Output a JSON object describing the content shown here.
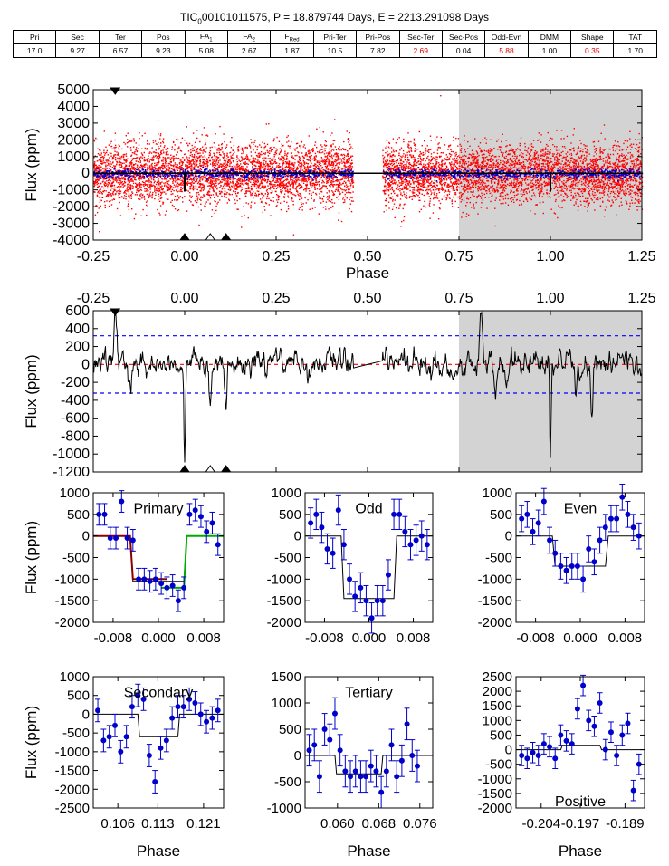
{
  "title": "TIC",
  "title_sub": "0",
  "title_rest": "00101011575, P = 18.879744 Days, E = 2213.291098 Days",
  "metrics": {
    "headers": [
      "Pri",
      "Sec",
      "Ter",
      "Pos",
      "FA1",
      "FA2",
      "FRed",
      "Pri-Ter",
      "Pri-Pos",
      "Sec-Ter",
      "Sec-Pos",
      "Odd-Evn",
      "DMM",
      "Shape",
      "TAT"
    ],
    "values": [
      "17.0",
      "9.27",
      "6.57",
      "9.23",
      "5.08",
      "2.67",
      "1.87",
      "10.5",
      "7.82",
      "2.69",
      "0.04",
      "5.88",
      "1.00",
      "0.35",
      "1.70"
    ],
    "red": [
      false,
      false,
      false,
      false,
      false,
      false,
      false,
      false,
      false,
      true,
      false,
      true,
      false,
      true,
      false
    ]
  },
  "colors": {
    "raw": "#ff0000",
    "binned": "#0000cc",
    "model": "#000000",
    "shade": "#d3d3d3",
    "primary_fit": "#8b0000",
    "primary_fit2": "#00aa00",
    "dashed_red": "#ff0000",
    "dashed_blue": "#0000ff"
  },
  "chart_data": [
    {
      "id": "phase-full",
      "type": "scatter",
      "xlabel": "Phase",
      "ylabel": "Flux (ppm)",
      "xlim": [
        -0.25,
        1.25
      ],
      "ylim": [
        -4000,
        5000
      ],
      "xticks": [
        "-0.25",
        "0.00",
        "0.25",
        "0.50",
        "0.75",
        "1.00",
        "1.25"
      ],
      "yticks": [
        "-4000",
        "-3000",
        "-2000",
        "-1000",
        "0",
        "1000",
        "2000",
        "3000",
        "4000",
        "5000"
      ],
      "shaded_x": [
        0.75,
        1.25
      ],
      "gap_x": [
        0.46,
        0.54
      ],
      "scatter_sigma": 900,
      "dips_x": [
        0.0,
        1.0
      ],
      "markers_top": [
        {
          "x": -0.19,
          "kind": "filled"
        }
      ],
      "markers_bottom": [
        {
          "x": 0.0,
          "kind": "filled"
        },
        {
          "x": 0.07,
          "kind": "open"
        },
        {
          "x": 0.113,
          "kind": "filled"
        }
      ]
    },
    {
      "id": "phase-binned",
      "type": "line",
      "xlim": [
        -0.25,
        1.25
      ],
      "ylim": [
        -1200,
        600
      ],
      "ylabel": "Flux (ppm)",
      "xticks": [
        "-0.25",
        "0.00",
        "0.25",
        "0.50",
        "0.75",
        "1.00",
        "1.25"
      ],
      "yticks": [
        "-1200",
        "-1000",
        "-800",
        "-600",
        "-400",
        "-200",
        "0",
        "200",
        "400",
        "600"
      ],
      "shaded_x": [
        0.75,
        1.25
      ],
      "hlines": [
        {
          "y": 320,
          "color": "blue"
        },
        {
          "y": -320,
          "color": "blue"
        },
        {
          "y": 0,
          "color": "red"
        }
      ],
      "features": [
        [
          -0.19,
          600,
          0.006
        ],
        [
          -0.15,
          -300,
          0.006
        ],
        [
          0.0,
          -1100,
          0.003
        ],
        [
          0.07,
          -420,
          0.004
        ],
        [
          0.113,
          -560,
          0.004
        ],
        [
          0.81,
          600,
          0.006
        ],
        [
          0.85,
          -300,
          0.006
        ],
        [
          1.0,
          -1100,
          0.003
        ],
        [
          1.07,
          -420,
          0.004
        ],
        [
          1.113,
          -560,
          0.004
        ]
      ],
      "flat_segment": [
        0.46,
        0.54,
        80
      ],
      "markers_top": [
        {
          "x": -0.19,
          "kind": "filled"
        }
      ],
      "markers_bottom": [
        {
          "x": 0.0,
          "kind": "filled"
        },
        {
          "x": 0.07,
          "kind": "open"
        },
        {
          "x": 0.113,
          "kind": "filled"
        }
      ]
    },
    {
      "id": "primary",
      "label": "Primary",
      "type": "scatter",
      "ylabel": "Flux (ppm)",
      "xlim": [
        -0.0115,
        0.0115
      ],
      "ylim": [
        -2000,
        1000
      ],
      "xticks": [
        [
          -0.008,
          "-0.008"
        ],
        [
          0.0,
          "0.000"
        ],
        [
          0.008,
          "0.008"
        ]
      ],
      "yticks": [
        "-2000",
        "-1500",
        "-1000",
        "-500",
        "0",
        "500",
        "1000"
      ],
      "x": [
        -0.0105,
        -0.0095,
        -0.0085,
        -0.0075,
        -0.0065,
        -0.0055,
        -0.0045,
        -0.0035,
        -0.0025,
        -0.0015,
        -0.0005,
        0.0005,
        0.0015,
        0.0025,
        0.0035,
        0.0045,
        0.0055,
        0.0065,
        0.0075,
        0.0085,
        0.0095,
        0.0105
      ],
      "y": [
        500,
        500,
        -50,
        -50,
        800,
        -50,
        -100,
        -1000,
        -1000,
        -1050,
        -1000,
        -1100,
        -1200,
        -1150,
        -1500,
        -1200,
        500,
        600,
        450,
        100,
        300,
        -200
      ],
      "err": 250,
      "model": [
        [
          -0.0115,
          0
        ],
        [
          -0.005,
          0
        ],
        [
          -0.0045,
          -1050
        ],
        [
          0.0045,
          -1050
        ],
        [
          0.005,
          0
        ],
        [
          0.0115,
          0
        ]
      ],
      "fit_left": [
        [
          -0.0115,
          0
        ],
        [
          -0.005,
          0
        ],
        [
          -0.0045,
          -1000
        ],
        [
          0.0015,
          -1000
        ]
      ],
      "fit_right": [
        [
          0.0005,
          -1200
        ],
        [
          0.0045,
          -1200
        ],
        [
          0.005,
          0
        ],
        [
          0.0115,
          0
        ]
      ]
    },
    {
      "id": "odd",
      "label": "Odd",
      "type": "scatter",
      "xlim": [
        -0.0115,
        0.0115
      ],
      "ylim": [
        -2000,
        1000
      ],
      "xticks": [
        [
          -0.008,
          "-0.008"
        ],
        [
          0.0,
          "0.000"
        ],
        [
          0.008,
          "0.008"
        ]
      ],
      "yticks": [
        "-2000",
        "-1500",
        "-1000",
        "-500",
        "0",
        "500",
        "1000"
      ],
      "x": [
        -0.0105,
        -0.0095,
        -0.0085,
        -0.0075,
        -0.0065,
        -0.0055,
        -0.0045,
        -0.0035,
        -0.0025,
        -0.0015,
        -0.0005,
        0.0005,
        0.0015,
        0.0025,
        0.0035,
        0.0045,
        0.0055,
        0.0065,
        0.0075,
        0.0085,
        0.0095,
        0.0105
      ],
      "y": [
        300,
        500,
        200,
        -300,
        -400,
        600,
        -200,
        -1000,
        -1400,
        -1200,
        -1500,
        -1900,
        -1500,
        -1500,
        -900,
        500,
        500,
        100,
        -200,
        -100,
        0,
        -200
      ],
      "err": 350,
      "model": [
        [
          -0.0115,
          0
        ],
        [
          -0.005,
          0
        ],
        [
          -0.0045,
          -1450
        ],
        [
          0.0045,
          -1450
        ],
        [
          0.005,
          0
        ],
        [
          0.0115,
          0
        ]
      ]
    },
    {
      "id": "even",
      "label": "Even",
      "type": "scatter",
      "xlim": [
        -0.0115,
        0.0115
      ],
      "ylim": [
        -2000,
        1000
      ],
      "xticks": [
        [
          -0.008,
          "-0.008"
        ],
        [
          0.0,
          "0.000"
        ],
        [
          0.008,
          "0.008"
        ]
      ],
      "yticks": [
        "-2000",
        "-1500",
        "-1000",
        "-500",
        "0",
        "500",
        "1000"
      ],
      "x": [
        -0.0105,
        -0.0095,
        -0.0085,
        -0.0075,
        -0.0065,
        -0.0055,
        -0.0045,
        -0.0035,
        -0.0025,
        -0.0015,
        -0.0005,
        0.0005,
        0.0015,
        0.0025,
        0.0035,
        0.0045,
        0.0055,
        0.0065,
        0.0075,
        0.0085,
        0.0095,
        0.0105
      ],
      "y": [
        400,
        500,
        100,
        300,
        800,
        -100,
        -400,
        -700,
        -800,
        -700,
        -700,
        -1000,
        -300,
        -600,
        -100,
        200,
        400,
        400,
        900,
        500,
        200,
        0
      ],
      "err": 300,
      "model": [
        [
          -0.0115,
          0
        ],
        [
          -0.005,
          0
        ],
        [
          -0.0045,
          -700
        ],
        [
          0.0045,
          -700
        ],
        [
          0.005,
          0
        ],
        [
          0.0115,
          0
        ]
      ]
    },
    {
      "id": "secondary",
      "label": "Secondary",
      "type": "scatter",
      "xlabel": "Phase",
      "ylabel": "Flux (ppm)",
      "xlim": [
        0.1017,
        0.1245
      ],
      "ylim": [
        -2500,
        1000
      ],
      "xticks": [
        [
          0.106,
          "0.106"
        ],
        [
          0.113,
          "0.113"
        ],
        [
          0.121,
          "0.121"
        ]
      ],
      "yticks": [
        "-2500",
        "-2000",
        "-1500",
        "-1000",
        "-500",
        "0",
        "500",
        "1000"
      ],
      "x": [
        0.1025,
        0.1035,
        0.1045,
        0.1055,
        0.1065,
        0.1075,
        0.1085,
        0.1095,
        0.1105,
        0.1115,
        0.1125,
        0.1135,
        0.1145,
        0.1155,
        0.1165,
        0.1175,
        0.1185,
        0.1195,
        0.1205,
        0.1215,
        0.1225,
        0.1235
      ],
      "y": [
        100,
        -700,
        -600,
        -300,
        -1000,
        -600,
        200,
        500,
        400,
        -1100,
        -1800,
        -900,
        -700,
        -100,
        200,
        200,
        400,
        300,
        0,
        -200,
        -100,
        100
      ],
      "err": 300,
      "model": [
        [
          0.1017,
          0
        ],
        [
          0.1095,
          0
        ],
        [
          0.1098,
          -600
        ],
        [
          0.1165,
          -600
        ],
        [
          0.1168,
          0
        ],
        [
          0.1245,
          0
        ]
      ]
    },
    {
      "id": "tertiary",
      "label": "Tertiary",
      "type": "scatter",
      "xlabel": "Phase",
      "xlim": [
        0.0537,
        0.0785
      ],
      "ylim": [
        -1000,
        1500
      ],
      "xticks": [
        [
          0.06,
          "0.060"
        ],
        [
          0.068,
          "0.068"
        ],
        [
          0.076,
          "0.076"
        ]
      ],
      "yticks": [
        "-1000",
        "-500",
        "0",
        "500",
        "1000",
        "1500"
      ],
      "x": [
        0.0545,
        0.0555,
        0.0565,
        0.0575,
        0.0585,
        0.0595,
        0.0605,
        0.0615,
        0.0625,
        0.0635,
        0.0645,
        0.0655,
        0.0665,
        0.0675,
        0.0685,
        0.0695,
        0.0705,
        0.0715,
        0.0725,
        0.0735,
        0.0745,
        0.0755
      ],
      "y": [
        100,
        200,
        -400,
        500,
        300,
        800,
        100,
        -300,
        -400,
        -300,
        -400,
        -400,
        -200,
        -300,
        -700,
        -300,
        200,
        -400,
        -100,
        600,
        0,
        -200
      ],
      "err": 300,
      "model": [
        [
          0.0537,
          0
        ],
        [
          0.0595,
          0
        ],
        [
          0.0598,
          -350
        ],
        [
          0.0685,
          -350
        ],
        [
          0.0688,
          0
        ],
        [
          0.0785,
          0
        ]
      ]
    },
    {
      "id": "positive",
      "label": "Positive",
      "type": "scatter",
      "xlabel": "Phase",
      "xlim": [
        -0.2085,
        -0.1855
      ],
      "ylim": [
        -2000,
        2500
      ],
      "xticks": [
        [
          -0.204,
          "-0.204"
        ],
        [
          -0.197,
          "-0.197"
        ],
        [
          -0.189,
          "-0.189"
        ]
      ],
      "yticks": [
        "-2000",
        "-1500",
        "-1000",
        "-500",
        "0",
        "500",
        "1000",
        "1500",
        "2000",
        "2500"
      ],
      "x": [
        -0.2075,
        -0.2065,
        -0.2055,
        -0.2045,
        -0.2035,
        -0.2025,
        -0.2015,
        -0.2005,
        -0.1995,
        -0.1985,
        -0.1975,
        -0.1965,
        -0.1955,
        -0.1945,
        -0.1935,
        -0.1925,
        -0.1915,
        -0.1905,
        -0.1895,
        -0.1885,
        -0.1875,
        -0.1865
      ],
      "y": [
        -200,
        -300,
        -100,
        -200,
        200,
        100,
        -300,
        500,
        300,
        200,
        1400,
        2200,
        1000,
        800,
        1600,
        0,
        600,
        -200,
        500,
        900,
        -1400,
        -500
      ],
      "err": 350,
      "model": [
        [
          -0.2085,
          0
        ],
        [
          -0.2005,
          0
        ],
        [
          -0.2002,
          150
        ],
        [
          -0.1935,
          150
        ],
        [
          -0.1932,
          0
        ],
        [
          -0.1855,
          0
        ]
      ]
    }
  ]
}
